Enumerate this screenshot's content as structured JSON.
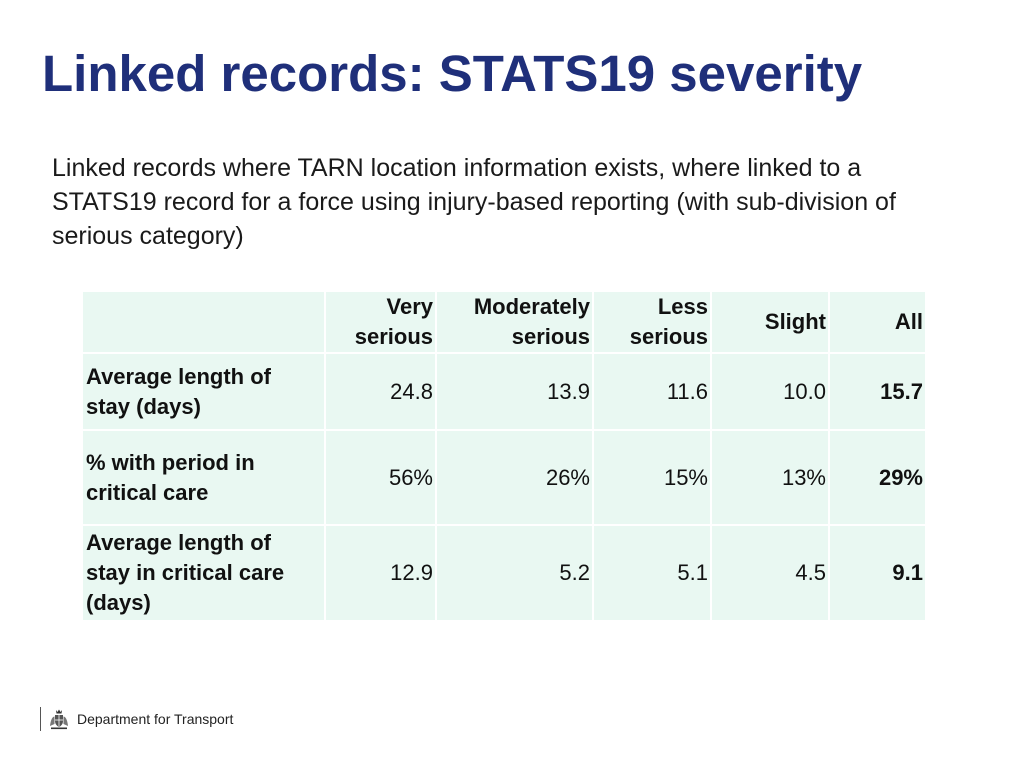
{
  "title": "Linked records: STATS19 severity",
  "intro": "Linked records where TARN location information exists, where linked to a STATS19 record for a force using injury-based reporting (with sub-division of serious category)",
  "table": {
    "headers": [
      [
        "Very",
        "serious"
      ],
      [
        "Moderately",
        "serious"
      ],
      [
        "Less",
        "serious"
      ],
      [
        "Slight"
      ],
      [
        "All"
      ]
    ],
    "rows": [
      {
        "label": [
          "Average length of",
          "stay (days)"
        ],
        "values": [
          "24.8",
          "13.9",
          "11.6",
          "10.0",
          "15.7"
        ]
      },
      {
        "label": [
          "% with period in",
          "critical care"
        ],
        "values": [
          "56%",
          "26%",
          "15%",
          "13%",
          "29%"
        ]
      },
      {
        "label": [
          "Average length of",
          "stay in critical care",
          "(days)"
        ],
        "values": [
          "12.9",
          "5.2",
          "5.1",
          "4.5",
          "9.1"
        ]
      }
    ]
  },
  "footer": {
    "organisation": "Department for Transport",
    "logo_icon": "royal-coat-of-arms-icon"
  },
  "colors": {
    "title": "#1f2f7a",
    "table_cell_background": "#e9f8f2"
  }
}
